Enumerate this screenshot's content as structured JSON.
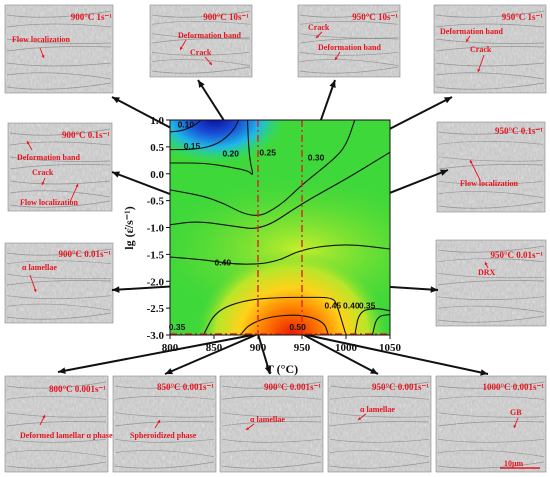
{
  "panels": [
    {
      "id": "p900_1",
      "title": "900°C 1s⁻¹",
      "labels": [
        "Flow localization"
      ]
    },
    {
      "id": "p900_10",
      "title": "900°C 10s⁻¹",
      "labels": [
        "Deformation band",
        "Crack"
      ]
    },
    {
      "id": "p950_10",
      "title": "950°C 10s⁻¹",
      "labels": [
        "Crack",
        "Deformation band"
      ]
    },
    {
      "id": "p950_1",
      "title": "950°C 1s⁻¹",
      "labels": [
        "Deformation band",
        "Crack"
      ]
    },
    {
      "id": "p900_01",
      "title": "900°C 0.1s⁻¹",
      "labels": [
        "Deformation band",
        "Crack",
        "Flow localization"
      ]
    },
    {
      "id": "p950_01",
      "title": "950°C 0.1s⁻¹",
      "labels": [
        "Flow localization"
      ]
    },
    {
      "id": "p900_001",
      "title": "900°C 0.01s⁻¹",
      "labels": [
        "α lamellae"
      ]
    },
    {
      "id": "p950_001",
      "title": "950°C 0.01s⁻¹",
      "labels": [
        "DRX"
      ]
    },
    {
      "id": "p800_0001",
      "title": "800°C 0.001s⁻¹",
      "labels": [
        "Deformed lamellar α phase"
      ]
    },
    {
      "id": "p850_0001",
      "title": "850°C 0.001s⁻¹",
      "labels": [
        "Spheroidized phase"
      ]
    },
    {
      "id": "p900_0001",
      "title": "900°C 0.001s⁻¹",
      "labels": [
        "α lamellae"
      ]
    },
    {
      "id": "p950_0001",
      "title": "950°C 0.001s⁻¹",
      "labels": [
        "α lamellae"
      ]
    },
    {
      "id": "p1000_0001",
      "title": "1000°C 0.001s⁻¹",
      "labels": [
        "GB"
      ],
      "scale_bar": "10μm"
    }
  ],
  "chart_data": {
    "type": "heatmap",
    "xlabel": "T (°C)",
    "ylabel": "lg (ε̇/s⁻¹)",
    "xlim": [
      800,
      1050
    ],
    "ylim": [
      -3.0,
      1.0
    ],
    "xticks": [
      800,
      850,
      900,
      950,
      1000,
      1050
    ],
    "yticks": [
      1.0,
      0.5,
      0.0,
      -0.5,
      -1.0,
      -1.5,
      -2.0,
      -2.5,
      -3.0
    ],
    "colors": {
      "low": "#1010a8",
      "mid": "#22cc33",
      "high": "#ee2200",
      "contour": "#111111",
      "dashed": "#dd2222"
    },
    "contour_labels": [
      {
        "value": "0.10",
        "x": 818,
        "y": 0.92
      },
      {
        "value": "0.15",
        "x": 825,
        "y": 0.52
      },
      {
        "value": "0.20",
        "x": 869,
        "y": 0.38
      },
      {
        "value": "0.25",
        "x": 911,
        "y": 0.4
      },
      {
        "value": "0.30",
        "x": 966,
        "y": 0.3
      },
      {
        "value": "0.40",
        "x": 860,
        "y": -1.65
      },
      {
        "value": "0.35",
        "x": 808,
        "y": -2.85
      },
      {
        "value": "0.50",
        "x": 945,
        "y": -2.85
      },
      {
        "value": "0.45",
        "x": 985,
        "y": -2.45
      },
      {
        "value": "0.40",
        "x": 1006,
        "y": -2.45
      },
      {
        "value": "0.35",
        "x": 1024,
        "y": -2.45
      }
    ],
    "dashed_lines": {
      "vertical_x": [
        900,
        950
      ],
      "horizontal_y": [
        -3.0
      ]
    }
  }
}
